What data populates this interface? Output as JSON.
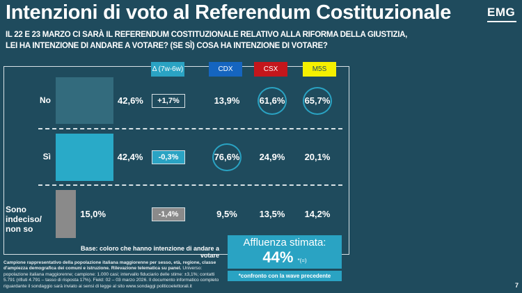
{
  "header": {
    "title": "Intenzioni di voto al Referendum Costituzionale",
    "logo": "EMG",
    "question_line1": "IL 22 E 23 MARZO CI SARÀ IL REFERENDUM COSTITUZIONALE RELATIVO ALLA RIFORMA DELLA GIUSTIZIA,",
    "question_line2": "LEI HA INTENZIONE DI ANDARE A VOTARE? (SE SÌ) COSA HA INTENZIONE DI VOTARE?"
  },
  "chart_data": {
    "type": "table",
    "columns": [
      "Δ (7w-6w)",
      "CDX",
      "CSX",
      "M5S"
    ],
    "column_colors": {
      "Δ (7w-6w)": "#2aa3c3",
      "CDX": "#1565c0",
      "CSX": "#c4161c",
      "M5S": "#f5f000"
    },
    "rows": [
      {
        "label": "No",
        "total": 42.6,
        "total_label": "42,6%",
        "bar_color": "#336b7d",
        "delta": "+1,7%",
        "delta_fill": "none",
        "CDX": "13,9%",
        "CSX": "61,6%",
        "M5S": "65,7%",
        "circled": [
          "CSX",
          "M5S"
        ]
      },
      {
        "label": "Sì",
        "total": 42.4,
        "total_label": "42,4%",
        "bar_color": "#29aac8",
        "delta": "-0,3%",
        "delta_fill": "#2aa3c3",
        "CDX": "76,6%",
        "CSX": "24,9%",
        "M5S": "20,1%",
        "circled": [
          "CDX"
        ]
      },
      {
        "label": "Sono indeciso/ non so",
        "label_line1": "Sono indeciso/",
        "label_line2": "non so",
        "total": 15.0,
        "total_label": "15,0%",
        "bar_color": "#8a8a8a",
        "delta": "-1,4%",
        "delta_fill": "#8a8a8a",
        "CDX": "9,5%",
        "CSX": "13,5%",
        "M5S": "14,2%",
        "circled": []
      }
    ]
  },
  "base_note": "Base: coloro che hanno intenzione di andare a votare",
  "turnout": {
    "label": "Affluenza stimata:",
    "value": "44%",
    "note": "*(=)",
    "comparison": "*confronto con la wave precedente"
  },
  "footnote": {
    "bold": "Campione rappresentativo della popolazione italiana maggiorenne per sesso, età, regione, classe d'ampiezza demografica dei comuni e istruzione. Rilevazione telematica su panel.",
    "text": " Universo: popolazione italiana maggiorenne; campione: 1.000 casi; intervallo fiduciario delle stime: ±3,1%; contatti 5.791 (rifiuti 4.791 – tasso di risposta 17%). Field: 02 – 03 marzo 2026. Il documento informatico completo riguardante il sondaggio sarà inviato ai sensi di legge al sito www.sondaggi politicoelettorali.it"
  },
  "page_number": "7"
}
